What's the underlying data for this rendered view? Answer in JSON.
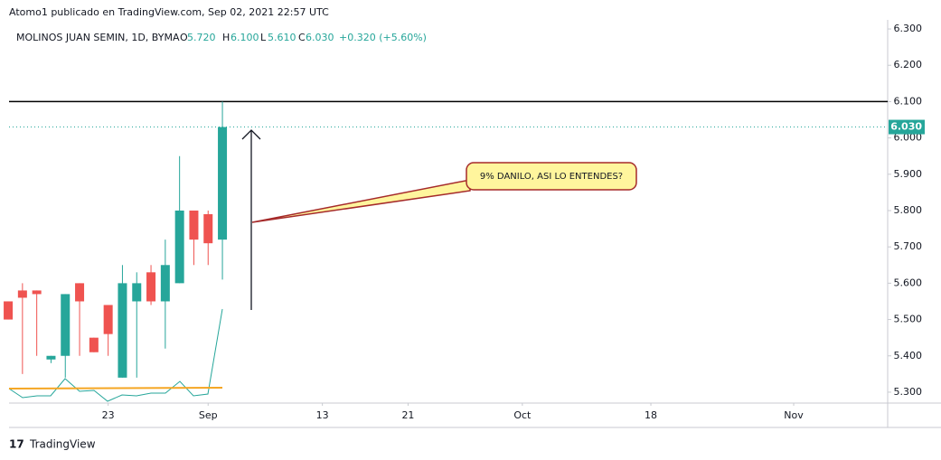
{
  "chart_data": {
    "type": "candlestick",
    "published": "Atomo1 publicado en TradingView.com, Sep 02, 2021 22:57 UTC",
    "header": {
      "symbol": "MOLINOS JUAN SEMIN, 1D, BYMA",
      "o": "O",
      "open": "5.720",
      "h": "H",
      "high": "6.100",
      "l": "L",
      "low": "5.610",
      "c": "C",
      "close": "6.030",
      "change": "+0.320 (+5.60%)"
    },
    "x": [
      0,
      1,
      2,
      3,
      4,
      5,
      6,
      7,
      8,
      9,
      10,
      11,
      12,
      13,
      14,
      15
    ],
    "open": [
      5.55,
      5.58,
      5.58,
      5.39,
      5.4,
      5.6,
      5.45,
      5.54,
      5.34,
      5.55,
      5.63,
      5.55,
      5.6,
      5.8,
      5.79,
      5.72
    ],
    "high": [
      5.55,
      5.6,
      5.58,
      5.4,
      5.57,
      5.6,
      5.45,
      5.54,
      5.65,
      5.63,
      5.65,
      5.72,
      5.95,
      5.8,
      5.8,
      6.1
    ],
    "low": [
      5.5,
      5.35,
      5.4,
      5.38,
      5.34,
      5.4,
      5.41,
      5.4,
      5.34,
      5.34,
      5.54,
      5.42,
      5.6,
      5.65,
      5.65,
      5.61
    ],
    "close": [
      5.5,
      5.56,
      5.57,
      5.4,
      5.57,
      5.55,
      5.41,
      5.46,
      5.6,
      5.6,
      5.55,
      5.65,
      5.8,
      5.72,
      5.71,
      6.03
    ],
    "up_color": "#26a69a",
    "down_color": "#ef5350",
    "xlim": [
      0.06,
      61.58
    ],
    "xticks": [
      {
        "value": 7,
        "label": "23"
      },
      {
        "value": 14,
        "label": "Sep"
      },
      {
        "value": 22,
        "label": "13"
      },
      {
        "value": 28,
        "label": "21"
      },
      {
        "value": 36,
        "label": "Oct"
      },
      {
        "value": 45,
        "label": "18"
      },
      {
        "value": 55,
        "label": "Nov"
      }
    ],
    "ylim": [
      5.27,
      6.325
    ],
    "yticks": [
      {
        "value": 5.3,
        "label": "5.300"
      },
      {
        "value": 5.4,
        "label": "5.400"
      },
      {
        "value": 5.5,
        "label": "5.500"
      },
      {
        "value": 5.6,
        "label": "5.600"
      },
      {
        "value": 5.7,
        "label": "5.700"
      },
      {
        "value": 5.8,
        "label": "5.800"
      },
      {
        "value": 5.9,
        "label": "5.900"
      },
      {
        "value": 6.0,
        "label": "6.000"
      },
      {
        "value": 6.1,
        "label": "6.100"
      },
      {
        "value": 6.2,
        "label": "6.200"
      },
      {
        "value": 6.3,
        "label": "6.300"
      }
    ],
    "hline": {
      "value": 6.1,
      "color": "#000000"
    },
    "last_price": {
      "value": 6.03,
      "label": "6.030",
      "color": "#26a69a"
    },
    "annotation": "9% DANILO, ASI LO ENTENDES?",
    "brand": "TradingView"
  }
}
